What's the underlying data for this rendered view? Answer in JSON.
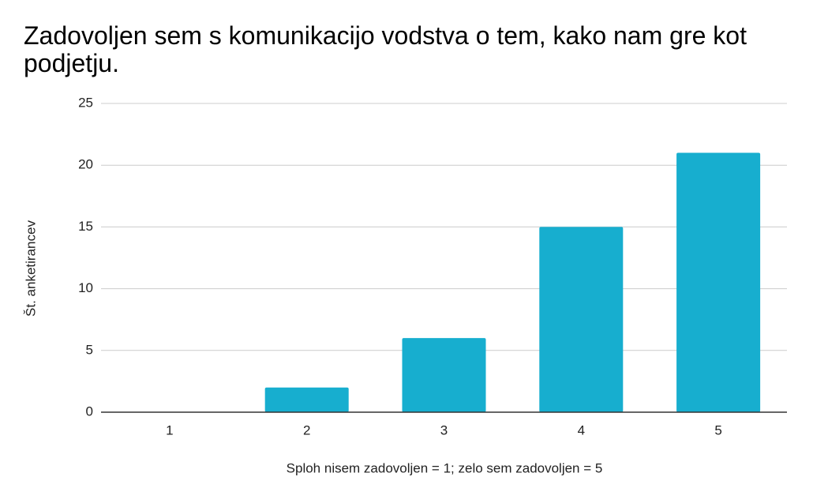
{
  "chart_data": {
    "type": "bar",
    "title": "Zadovoljen sem s komunikacijo vodstva o tem, kako nam gre kot podjetju.",
    "categories": [
      "1",
      "2",
      "3",
      "4",
      "5"
    ],
    "values": [
      0,
      2,
      6,
      15,
      21
    ],
    "color": "#17aecf",
    "x_label": "Sploh nisem zadovoljen = 1; zelo sem zadovoljen = 5",
    "y_label": "Št. anketirancev",
    "ylim": [
      0,
      25
    ],
    "yticks": [
      0,
      5,
      10,
      15,
      20,
      25
    ],
    "grid": true
  }
}
